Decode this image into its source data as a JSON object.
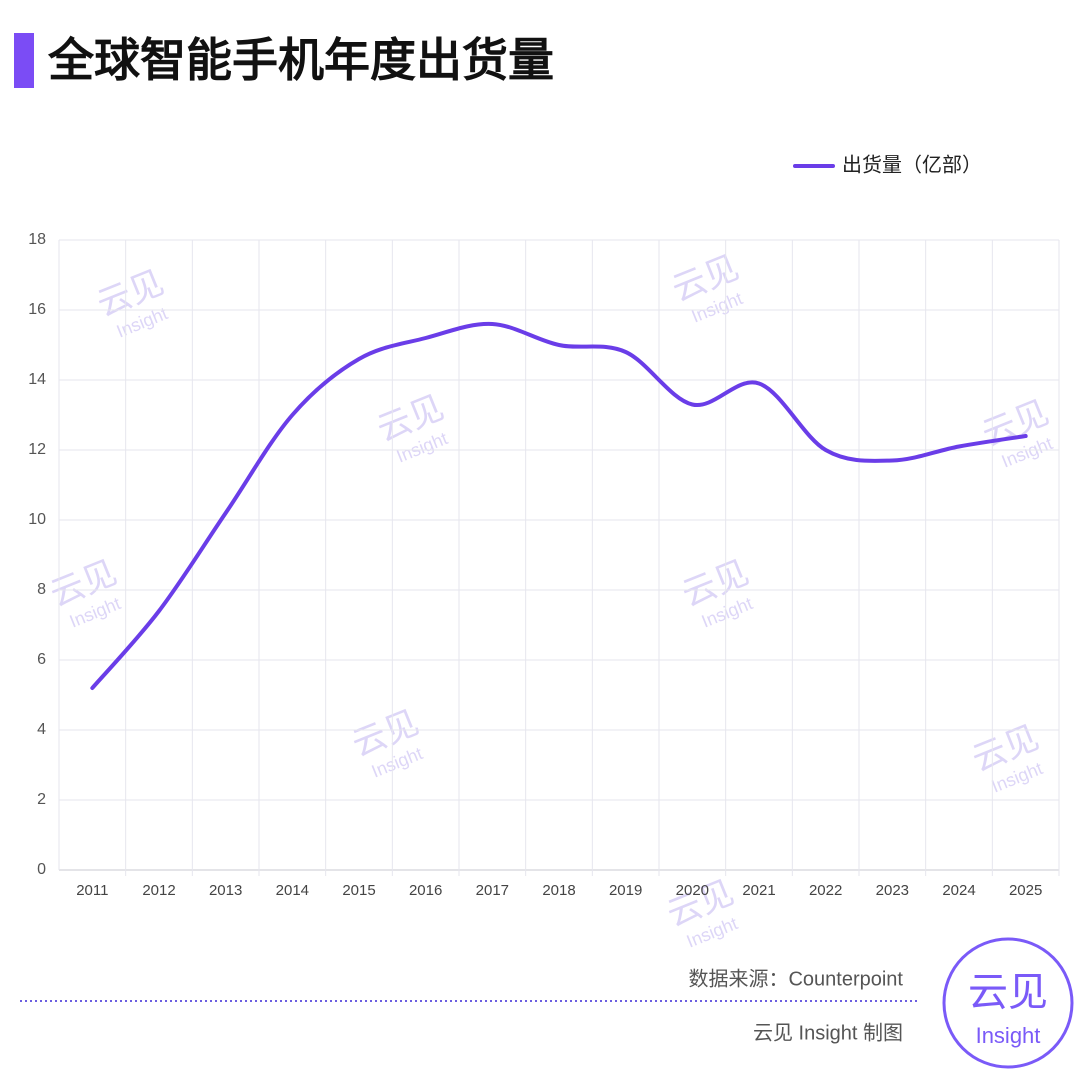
{
  "chart_data": {
    "type": "line",
    "title": "全球智能手机年度出货量",
    "categories": [
      "2011",
      "2012",
      "2013",
      "2014",
      "2015",
      "2016",
      "2017",
      "2018",
      "2019",
      "2020",
      "2021",
      "2022",
      "2023",
      "2024",
      "2025"
    ],
    "series": [
      {
        "name": "出货量（亿部）",
        "color": "#6a3de8",
        "values": [
          5.2,
          7.4,
          10.2,
          13.0,
          14.6,
          15.2,
          15.6,
          15.0,
          14.8,
          13.3,
          13.9,
          12.0,
          11.7,
          12.1,
          12.4
        ]
      }
    ],
    "ylim": [
      0,
      18
    ],
    "yticks": [
      0,
      2,
      4,
      6,
      8,
      10,
      12,
      14,
      16,
      18
    ],
    "grid": true,
    "smooth": true,
    "legend": "top-right",
    "source": "数据来源：Counterpoint",
    "credit": "云见 Insight 制图",
    "watermark": {
      "brand": "云见",
      "sub": "Insight"
    },
    "logo": {
      "brand": "云见",
      "sub": "Insight"
    }
  }
}
